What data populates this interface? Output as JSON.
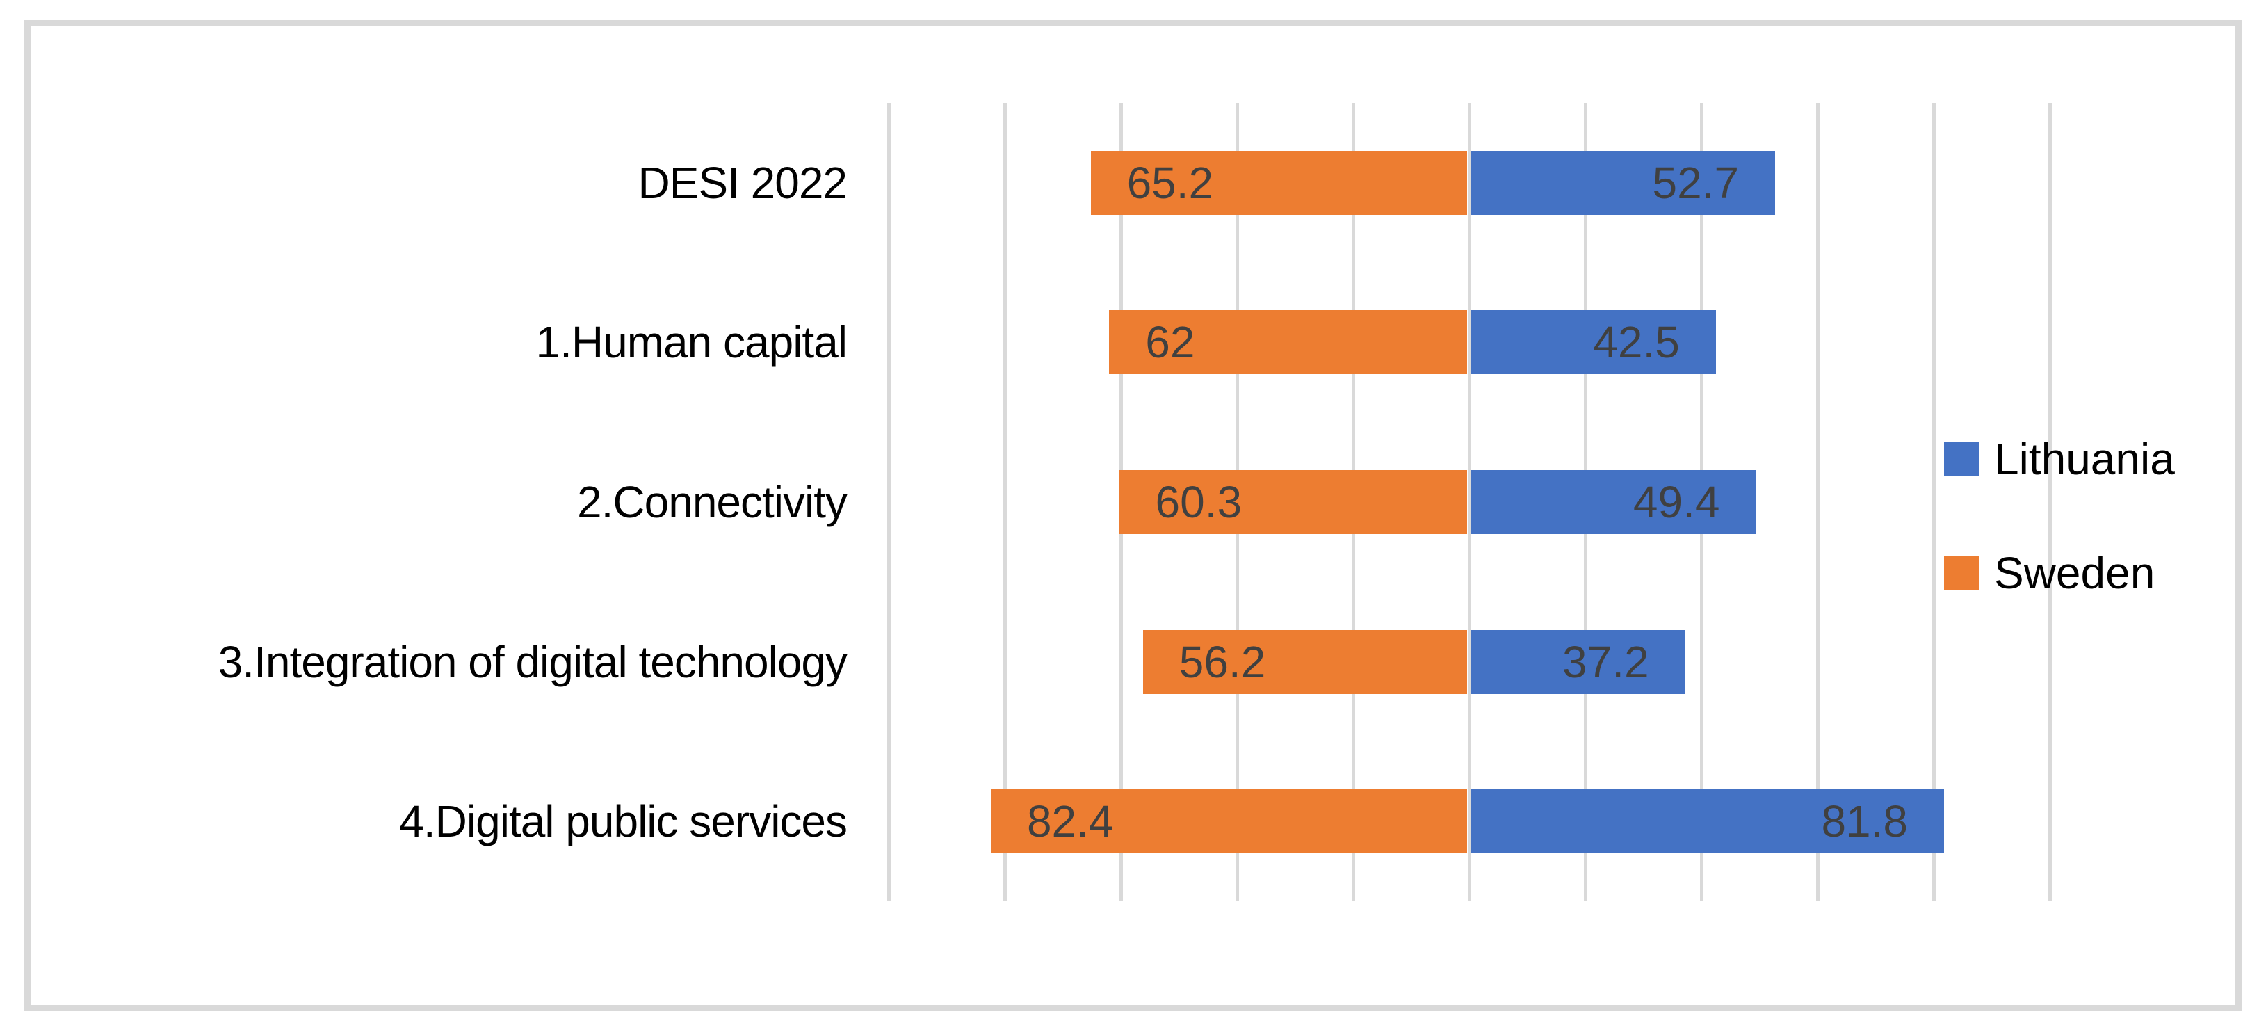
{
  "chart_data": {
    "type": "bar",
    "variant": "diverging-horizontal",
    "title": "",
    "categories": [
      "DESI 2022",
      "1.Human capital",
      "2.Connectivity",
      "3.Integration of digital technology",
      "4.Digital public services"
    ],
    "series": [
      {
        "name": "Lithuania",
        "color": "#4472C4",
        "direction": "right",
        "values": [
          52.7,
          42.5,
          49.4,
          37.2,
          81.8
        ],
        "labels": [
          "52.7",
          "42.5",
          "49.4",
          "37.2",
          "81.8"
        ]
      },
      {
        "name": "Sweden",
        "color": "#ED7D31",
        "direction": "left",
        "values": [
          65.2,
          62,
          60.3,
          56.2,
          82.4
        ],
        "labels": [
          "65.2",
          "62",
          "60.3",
          "56.2",
          "82.4"
        ]
      }
    ],
    "axis": {
      "min": -100,
      "max": 100,
      "gridline_step": 20,
      "gridlines_visible": true,
      "tick_labels_visible": false
    },
    "legend": {
      "position": "right",
      "entries": [
        "Lithuania",
        "Sweden"
      ]
    },
    "colors": {
      "gridline": "#D9D9D9",
      "frame_border": "#D9D9D9",
      "value_label": "#404040",
      "category_label": "#000000",
      "background": "#FFFFFF"
    }
  }
}
